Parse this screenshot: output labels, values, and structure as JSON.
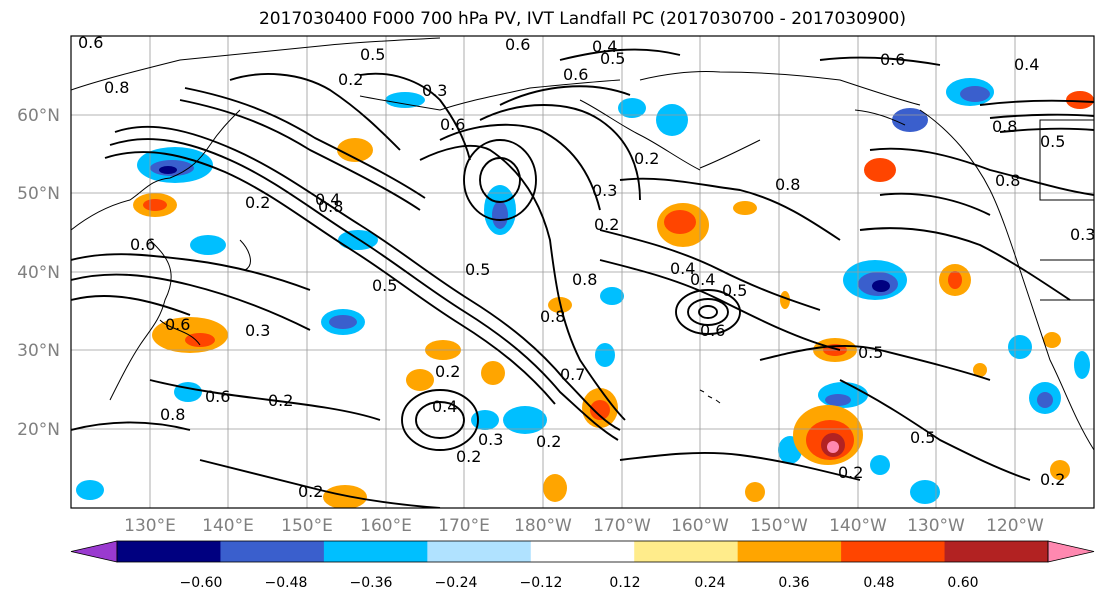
{
  "title": "2017030400 F000 700 hPa PV, IVT Landfall PC (2017030700 - 2017030900)",
  "lat_ticks": [
    "60°N",
    "50°N",
    "40°N",
    "30°N",
    "20°N"
  ],
  "lon_ticks": [
    "130°E",
    "140°E",
    "150°E",
    "160°E",
    "170°E",
    "180°W",
    "170°W",
    "160°W",
    "150°W",
    "140°W",
    "130°W",
    "120°W"
  ],
  "colorbar": {
    "colors": [
      "#9a3ad0",
      "#000080",
      "#3a5fcd",
      "#00bfff",
      "#b0e2ff",
      "#ffffff",
      "#ffec8b",
      "#ffa500",
      "#ff4500",
      "#b22222",
      "#ff88b0"
    ],
    "labels": [
      "−0.60",
      "−0.48",
      "−0.36",
      "−0.24",
      "−0.12",
      "0.12",
      "0.24",
      "0.36",
      "0.48",
      "0.60"
    ]
  },
  "contour_labels": [
    "0.6",
    "0.4",
    "0.6",
    "0.5",
    "0.2",
    "0.3",
    "0.8",
    "0.6",
    "0.4",
    "0.8",
    "0.5",
    "0.3",
    "0.2",
    "0.4",
    "0.6",
    "0.5",
    "0.8",
    "0.2",
    "0.4",
    "0.2",
    "0.3",
    "0.2",
    "0.2",
    "0.5",
    "0.8",
    "0.5",
    "0.2",
    "0.5",
    "0.2",
    "0.4",
    "0.2",
    "0.8",
    "0.6",
    "0.2",
    "0.8",
    "0.5",
    "0.3",
    "0.2",
    "0.8",
    "0.3",
    "0.6",
    "0.6",
    "0.6",
    "0.4",
    "0.7",
    "0.6",
    "0.5",
    "0.8"
  ]
}
